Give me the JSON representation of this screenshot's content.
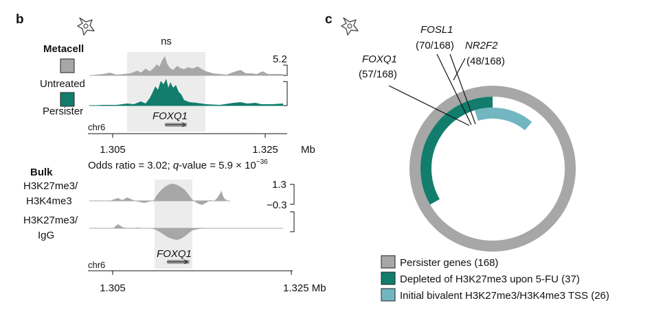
{
  "panel_b": {
    "letter": "b",
    "metacell": {
      "heading": "Metacell",
      "untreated_label": "Untreated",
      "persister_label": "Persister",
      "sig_label": "ns",
      "ymax_label": "5.2",
      "gene_label": "FOXQ1",
      "chrom_label": "chr6",
      "x_ticks": [
        "1.305",
        "1.325"
      ],
      "x_unit": "Mb"
    },
    "bulk": {
      "heading": "Bulk",
      "stat_prefix": "Odds ratio = 3.02; ",
      "stat_q": "q",
      "stat_mid": "-value = 5.9 × 10",
      "stat_exp": "−36",
      "track1_line1": "H3K27me3/",
      "track1_line2": "H3K4me3",
      "track2_line1": "H3K27me3/",
      "track2_line2": "IgG",
      "ymax_label": "1.3",
      "ymin_label": "−0.3",
      "gene_label": "FOXQ1",
      "chrom_label": "chr6",
      "x_ticks": [
        "1.305",
        "1.325 Mb"
      ]
    }
  },
  "panel_c": {
    "letter": "c",
    "annotations": [
      {
        "gene": "FOXQ1",
        "count": "(57/168)"
      },
      {
        "gene": "FOSL1",
        "count": "(70/168)"
      },
      {
        "gene": "NR2F2",
        "count": "(48/168)"
      }
    ],
    "legend": [
      {
        "label": "Persister genes (168)",
        "color": "#a7a7a7"
      },
      {
        "label": "Depleted of H3K27me3 upon 5-FU (37)",
        "color": "#127d6c"
      },
      {
        "label": "Initial bivalent H3K27me3/H3K4me3 TSS (26)",
        "color": "#72b6c2"
      }
    ]
  },
  "colors": {
    "untreated": "#a7a7a7",
    "persister": "#127d6c",
    "bivalent": "#72b6c2",
    "highlight": "#ececec"
  },
  "icons": [
    "cell-icon"
  ]
}
